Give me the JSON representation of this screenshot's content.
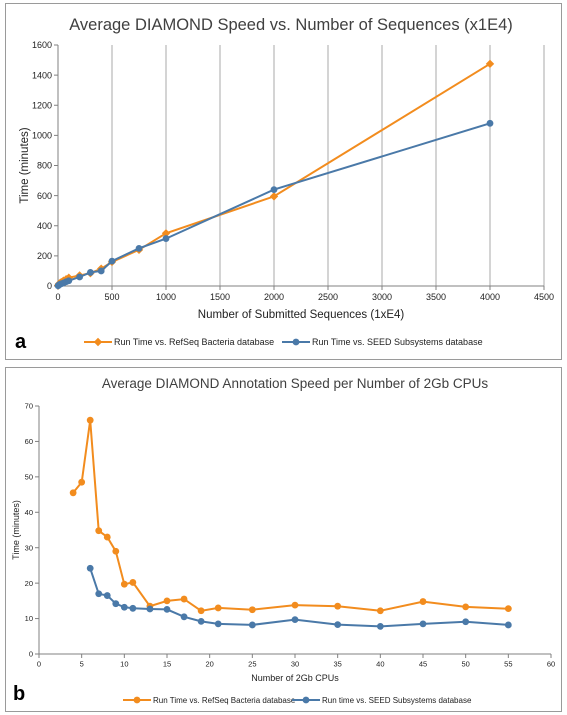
{
  "chart_data": [
    {
      "panel_label": "a",
      "type": "line",
      "title": "Average DIAMOND Speed vs. Number of Sequences (x1E4)",
      "xlabel": "Number of Submitted Sequences (1xE4)",
      "ylabel": "Time (minutes)",
      "xlim": [
        0,
        4500
      ],
      "ylim": [
        0,
        1600
      ],
      "xticks": [
        0,
        500,
        1000,
        1500,
        2000,
        2500,
        3000,
        3500,
        4000,
        4500
      ],
      "yticks": [
        0,
        200,
        400,
        600,
        800,
        1000,
        1200,
        1400,
        1600
      ],
      "grid": "vertical",
      "legend_position": "bottom",
      "series": [
        {
          "name": "Run Time vs. RefSeq Bacteria database",
          "color": "#f28c1e",
          "marker": "diamond",
          "x": [
            1,
            10,
            20,
            30,
            50,
            75,
            100,
            200,
            300,
            400,
            500,
            750,
            1000,
            2000,
            4000
          ],
          "y": [
            4,
            15,
            20,
            25,
            35,
            45,
            55,
            70,
            85,
            115,
            160,
            240,
            350,
            595,
            1475
          ]
        },
        {
          "name": "Run Time vs. SEED Subsystems database",
          "color": "#4a79a8",
          "marker": "circle",
          "x": [
            1,
            10,
            20,
            30,
            50,
            75,
            100,
            200,
            300,
            400,
            500,
            750,
            1000,
            2000,
            4000
          ],
          "y": [
            2,
            8,
            12,
            15,
            20,
            28,
            35,
            60,
            90,
            100,
            165,
            250,
            315,
            640,
            1080
          ]
        }
      ]
    },
    {
      "panel_label": "b",
      "type": "line",
      "title": "Average DIAMOND Annotation Speed per Number of 2Gb CPUs",
      "xlabel": "Number of 2Gb CPUs",
      "ylabel": "Time (minutes)",
      "xlim": [
        0,
        60
      ],
      "ylim": [
        0,
        70
      ],
      "xticks": [
        0,
        5,
        10,
        15,
        20,
        25,
        30,
        35,
        40,
        45,
        50,
        55,
        60
      ],
      "yticks": [
        0,
        10,
        20,
        30,
        40,
        50,
        60,
        70
      ],
      "grid": "none",
      "legend_position": "bottom",
      "series": [
        {
          "name": "Run Time vs. RefSeq Bacteria database",
          "color": "#f28c1e",
          "marker": "circle",
          "x": [
            4,
            5,
            6,
            7,
            8,
            9,
            10,
            11,
            13,
            15,
            17,
            19,
            21,
            25,
            30,
            35,
            40,
            45,
            50,
            55
          ],
          "y": [
            45.5,
            48.5,
            66,
            34.8,
            33,
            29,
            19.7,
            20.2,
            13.5,
            15,
            15.5,
            12.2,
            13,
            12.5,
            13.8,
            13.5,
            12.2,
            14.8,
            13.3,
            12.8
          ]
        },
        {
          "name": "Run time vs. SEED Subsystems database",
          "color": "#4a79a8",
          "marker": "circle",
          "x": [
            6,
            7,
            8,
            9,
            10,
            11,
            13,
            15,
            17,
            19,
            21,
            25,
            30,
            35,
            40,
            45,
            50,
            55
          ],
          "y": [
            24.2,
            17,
            16.5,
            14.2,
            13.2,
            12.9,
            12.7,
            12.6,
            10.5,
            9.2,
            8.5,
            8.2,
            9.7,
            8.3,
            7.8,
            8.5,
            9.1,
            8.2
          ]
        }
      ]
    }
  ]
}
